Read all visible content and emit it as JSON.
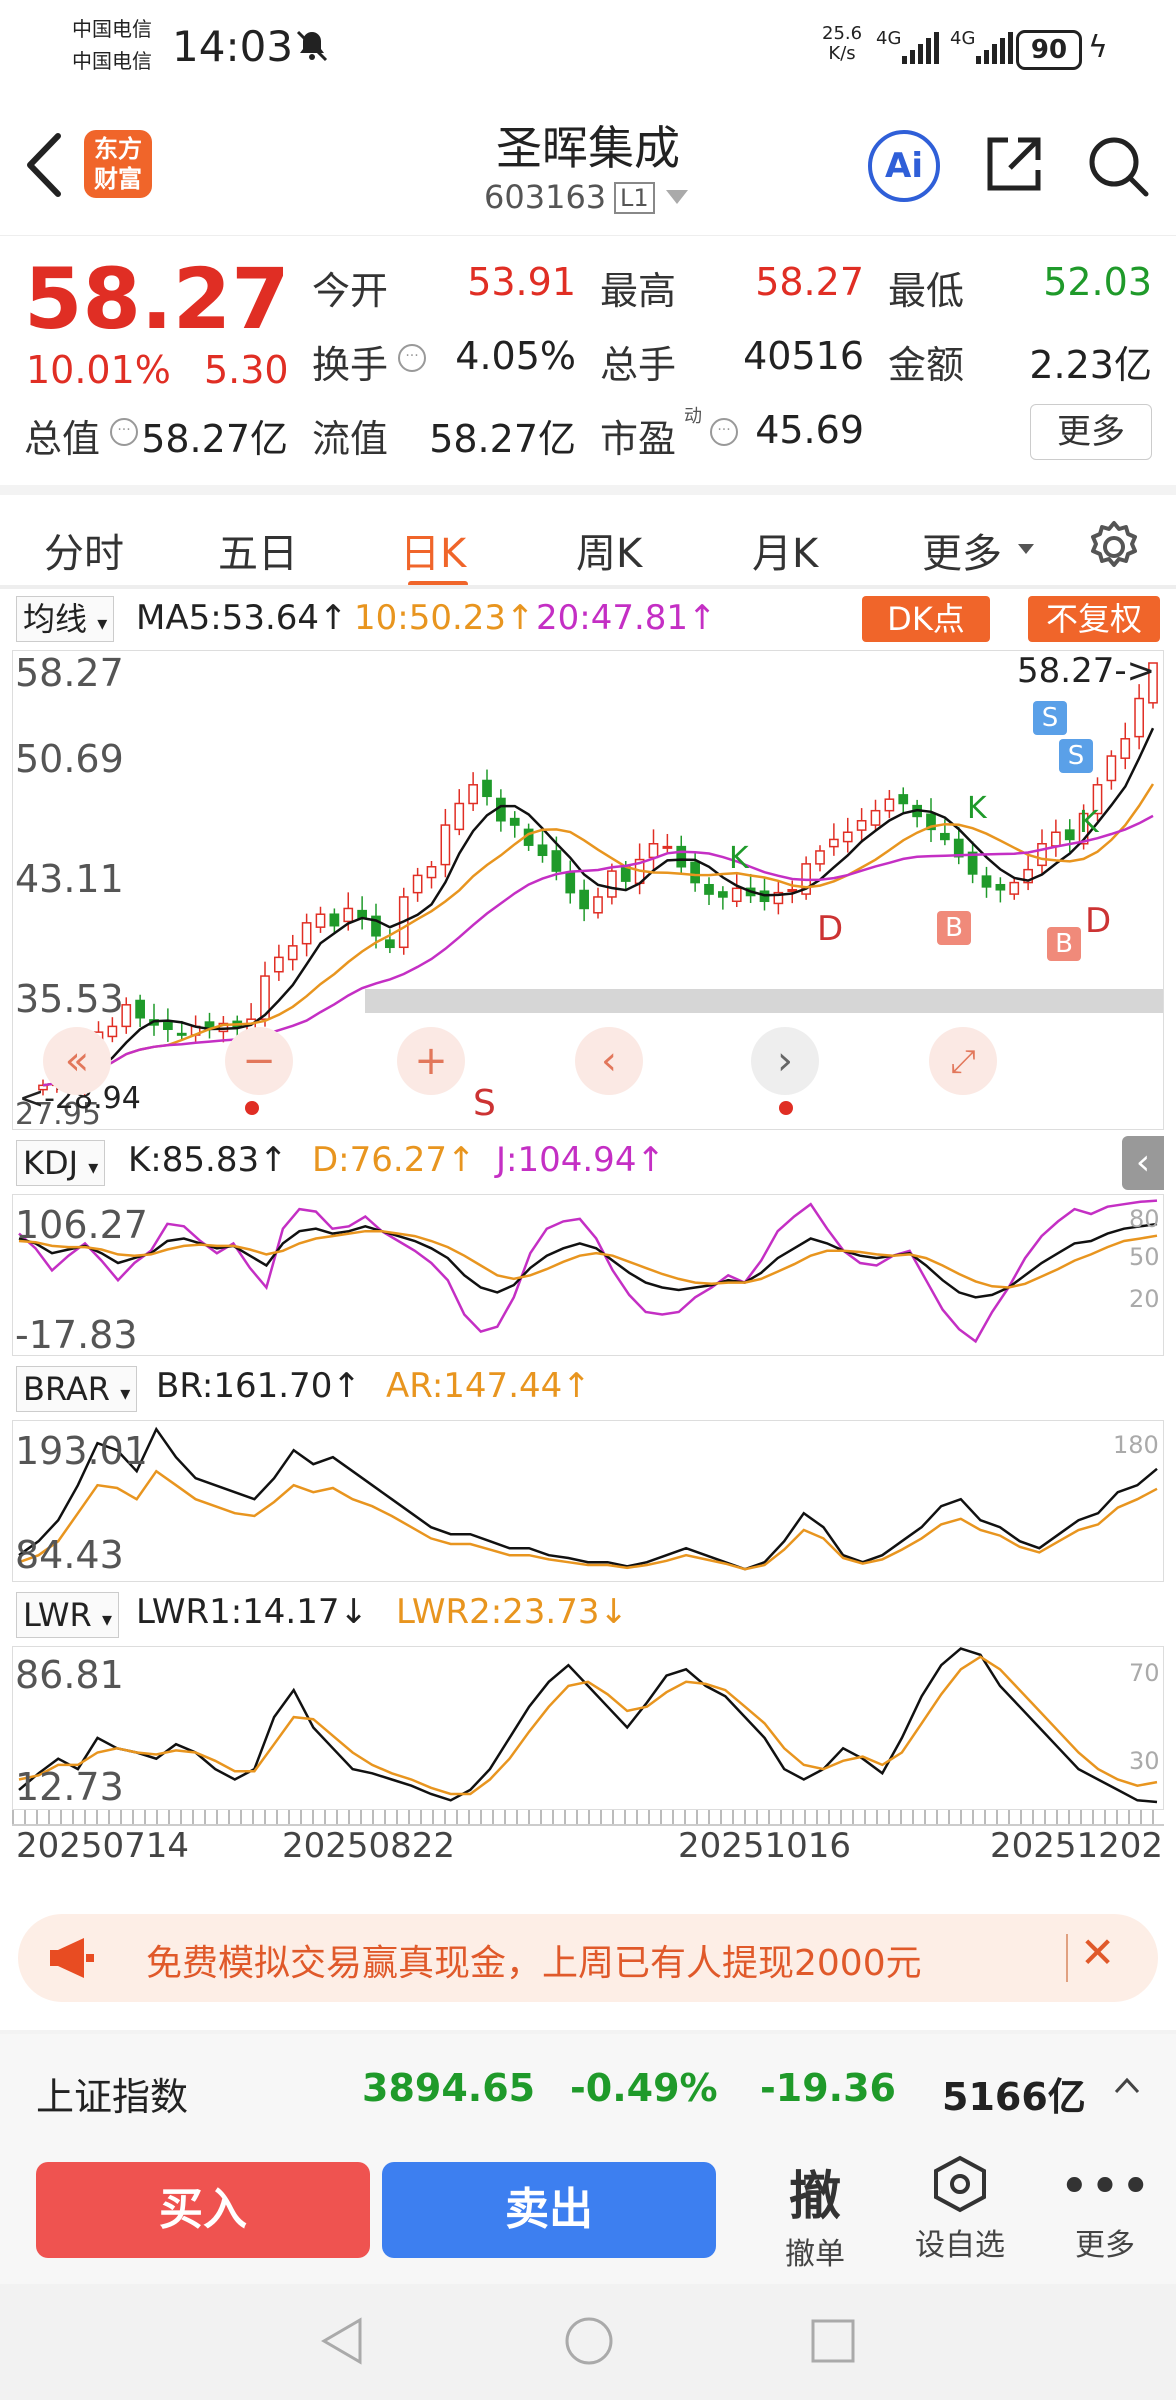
{
  "status_bar": {
    "carrier1": "中国电信",
    "carrier2": "中国电信",
    "time": "14:03",
    "net_speed_value": "25.6",
    "net_speed_unit": "K/s",
    "net1": "4G",
    "net2": "4G",
    "battery": "90"
  },
  "header": {
    "logo_line1": "东方",
    "logo_line2": "财富",
    "stock_name": "圣晖集成",
    "stock_code": "603163",
    "level_badge": "L1",
    "ai_label": "Ai"
  },
  "quote": {
    "price": "58.27",
    "change_pct": "10.01%",
    "change_abs": "5.30",
    "open_label": "今开",
    "open_value": "53.91",
    "high_label": "最高",
    "high_value": "58.27",
    "low_label": "最低",
    "low_value": "52.03",
    "turnover_label": "换手",
    "turnover_value": "4.05%",
    "volume_label": "总手",
    "volume_value": "40516",
    "amount_label": "金额",
    "amount_value": "2.23亿",
    "mktcap_label": "总值",
    "mktcap_value": "58.27亿",
    "float_label": "流值",
    "float_value": "58.27亿",
    "pe_label": "市盈",
    "pe_sup": "动",
    "pe_value": "45.69",
    "more_button": "更多"
  },
  "tabs": [
    {
      "label": "分时"
    },
    {
      "label": "五日"
    },
    {
      "label": "日K"
    },
    {
      "label": "周K"
    },
    {
      "label": "月K"
    },
    {
      "label": "更多"
    }
  ],
  "main_chart": {
    "indicator_select": "均线",
    "ma5": "MA5:53.64↑",
    "ma10": "10:50.23↑",
    "ma20": "20:47.81↑",
    "dk_button": "DK点",
    "adjust_button": "不复权",
    "y_labels": [
      "58.27",
      "50.69",
      "43.11",
      "35.53",
      "27.95"
    ],
    "last_price_marker": "58.27->",
    "low_marker": "<-28.94",
    "d_markers": [
      "D",
      "D"
    ],
    "b_markers": [
      "B",
      "B"
    ],
    "s_markers": [
      "S",
      "S"
    ],
    "k_markers": [
      "K",
      "K",
      "K"
    ],
    "s_bottom": "S",
    "colors": {
      "up": "#e02e24",
      "down": "#1f9a2a",
      "ma5": "#111111",
      "ma10": "#e8951f",
      "ma20": "#c42fc4"
    },
    "closes": [
      28.9,
      29.2,
      29.0,
      30.3,
      32.6,
      33.0,
      34.5,
      33.6,
      33.1,
      32.8,
      32.4,
      33.0,
      32.8,
      33.2,
      33.0,
      33.5,
      36.5,
      37.8,
      38.6,
      40.2,
      40.8,
      40.0,
      41.2,
      40.5,
      39.3,
      38.5,
      42.0,
      43.5,
      44.1,
      47.0,
      48.5,
      49.8,
      49.0,
      47.3,
      47.0,
      45.6,
      44.9,
      43.8,
      42.3,
      41.2,
      42.0,
      43.8,
      43.1,
      44.6,
      45.7,
      45.5,
      44.1,
      43.0,
      42.2,
      42.0,
      42.6,
      42.1,
      41.7,
      42.3,
      42.5,
      44.3,
      45.2,
      46.0,
      46.5,
      47.3,
      48.0,
      48.8,
      48.5,
      47.6,
      46.7,
      46.0,
      44.8,
      43.6,
      42.7,
      42.5,
      43.0,
      43.9,
      45.7,
      46.5,
      46.0,
      47.8,
      49.8,
      51.8,
      53.0,
      55.8,
      58.27
    ]
  },
  "kdj": {
    "select": "KDJ",
    "k": "K:85.83↑",
    "d": "D:76.27↑",
    "j": "J:104.94↑",
    "y_top": "106.27",
    "y_bottom": "-17.83",
    "right_labels": [
      "80",
      "50",
      "20"
    ],
    "k_values": [
      74,
      70,
      62,
      65,
      68,
      62,
      54,
      58,
      62,
      72,
      74,
      70,
      66,
      68,
      60,
      52,
      70,
      80,
      82,
      78,
      80,
      84,
      80,
      76,
      72,
      66,
      58,
      44,
      34,
      30,
      36,
      50,
      60,
      66,
      70,
      66,
      56,
      46,
      38,
      34,
      32,
      34,
      36,
      40,
      38,
      46,
      58,
      66,
      74,
      70,
      64,
      60,
      58,
      60,
      62,
      52,
      40,
      30,
      26,
      28,
      34,
      44,
      54,
      62,
      70,
      72,
      78,
      82,
      84,
      85.83
    ],
    "d_values": [
      72,
      71,
      68,
      67,
      67,
      65,
      61,
      60,
      61,
      65,
      68,
      69,
      68,
      68,
      65,
      61,
      64,
      70,
      74,
      76,
      78,
      80,
      80,
      78,
      76,
      72,
      67,
      60,
      52,
      44,
      41,
      44,
      49,
      55,
      60,
      62,
      60,
      55,
      50,
      45,
      41,
      38,
      37,
      38,
      38,
      41,
      47,
      53,
      60,
      64,
      64,
      63,
      61,
      60,
      61,
      58,
      52,
      45,
      39,
      35,
      34,
      37,
      43,
      49,
      56,
      61,
      67,
      72,
      74,
      76.27
    ],
    "j_values": [
      78,
      66,
      48,
      60,
      70,
      56,
      40,
      54,
      64,
      86,
      84,
      72,
      62,
      70,
      50,
      34,
      82,
      98,
      96,
      82,
      84,
      92,
      80,
      72,
      64,
      54,
      40,
      12,
      -2,
      2,
      26,
      62,
      82,
      88,
      90,
      74,
      48,
      28,
      14,
      12,
      14,
      26,
      34,
      44,
      38,
      56,
      80,
      92,
      102,
      82,
      64,
      54,
      52,
      60,
      64,
      40,
      16,
      0,
      -10,
      14,
      34,
      58,
      76,
      88,
      98,
      94,
      100,
      102,
      104,
      104.94
    ]
  },
  "brar": {
    "select": "BRAR",
    "br": "BR:161.70↑",
    "ar": "AR:147.44↑",
    "y_top": "193.01",
    "y_bottom": "84.43",
    "right_label": "180",
    "br_values": [
      100,
      110,
      125,
      150,
      180,
      175,
      160,
      190,
      170,
      155,
      150,
      145,
      140,
      155,
      175,
      165,
      170,
      160,
      150,
      140,
      130,
      120,
      115,
      115,
      110,
      105,
      105,
      100,
      98,
      95,
      95,
      92,
      95,
      100,
      105,
      100,
      95,
      90,
      95,
      110,
      130,
      120,
      100,
      95,
      100,
      110,
      120,
      135,
      140,
      125,
      120,
      110,
      105,
      115,
      125,
      130,
      145,
      150,
      161.7
    ],
    "ar_values": [
      95,
      100,
      110,
      130,
      150,
      148,
      140,
      160,
      150,
      140,
      135,
      130,
      128,
      138,
      150,
      145,
      148,
      140,
      135,
      128,
      120,
      112,
      108,
      108,
      104,
      100,
      100,
      97,
      95,
      93,
      93,
      91,
      93,
      96,
      100,
      97,
      94,
      90,
      93,
      104,
      118,
      112,
      98,
      94,
      97,
      104,
      112,
      122,
      126,
      118,
      114,
      106,
      102,
      110,
      118,
      122,
      134,
      140,
      147.44
    ]
  },
  "lwr": {
    "select": "LWR",
    "lwr1": "LWR1:14.17↓",
    "lwr2": "LWR2:23.73↓",
    "y_top": "86.81",
    "y_bottom": "12.73",
    "right_labels": [
      "70",
      "30"
    ],
    "lwr1_values": [
      20,
      28,
      35,
      30,
      45,
      40,
      38,
      35,
      42,
      38,
      30,
      25,
      30,
      55,
      68,
      50,
      40,
      30,
      28,
      25,
      22,
      18,
      15,
      20,
      30,
      45,
      60,
      72,
      80,
      70,
      60,
      50,
      62,
      75,
      78,
      70,
      65,
      55,
      45,
      30,
      25,
      30,
      40,
      35,
      28,
      45,
      65,
      80,
      88,
      85,
      70,
      60,
      50,
      40,
      30,
      25,
      20,
      15,
      14.17
    ],
    "lwr2_values": [
      25,
      27,
      32,
      32,
      38,
      40,
      38,
      37,
      39,
      38,
      34,
      29,
      29,
      42,
      55,
      54,
      46,
      38,
      32,
      28,
      25,
      21,
      18,
      18,
      25,
      35,
      48,
      60,
      70,
      72,
      66,
      58,
      60,
      67,
      72,
      71,
      68,
      60,
      52,
      40,
      32,
      30,
      34,
      36,
      32,
      38,
      52,
      66,
      78,
      84,
      78,
      68,
      58,
      48,
      38,
      30,
      25,
      22,
      23.73
    ]
  },
  "x_labels": [
    "20250714",
    "20250822",
    "20251016",
    "20251202"
  ],
  "banner": {
    "text": "免费模拟交易赢真现金，上周已有人提现2000元",
    "close": "✕"
  },
  "index_bar": {
    "name": "上证指数",
    "value": "3894.65",
    "pct": "-0.49%",
    "change": "-19.36",
    "amount": "5166亿"
  },
  "bottom": {
    "buy": "买入",
    "sell": "卖出",
    "withdraw_glyph": "撤",
    "withdraw": "撤单",
    "watchlist": "设自选",
    "more": "更多"
  }
}
